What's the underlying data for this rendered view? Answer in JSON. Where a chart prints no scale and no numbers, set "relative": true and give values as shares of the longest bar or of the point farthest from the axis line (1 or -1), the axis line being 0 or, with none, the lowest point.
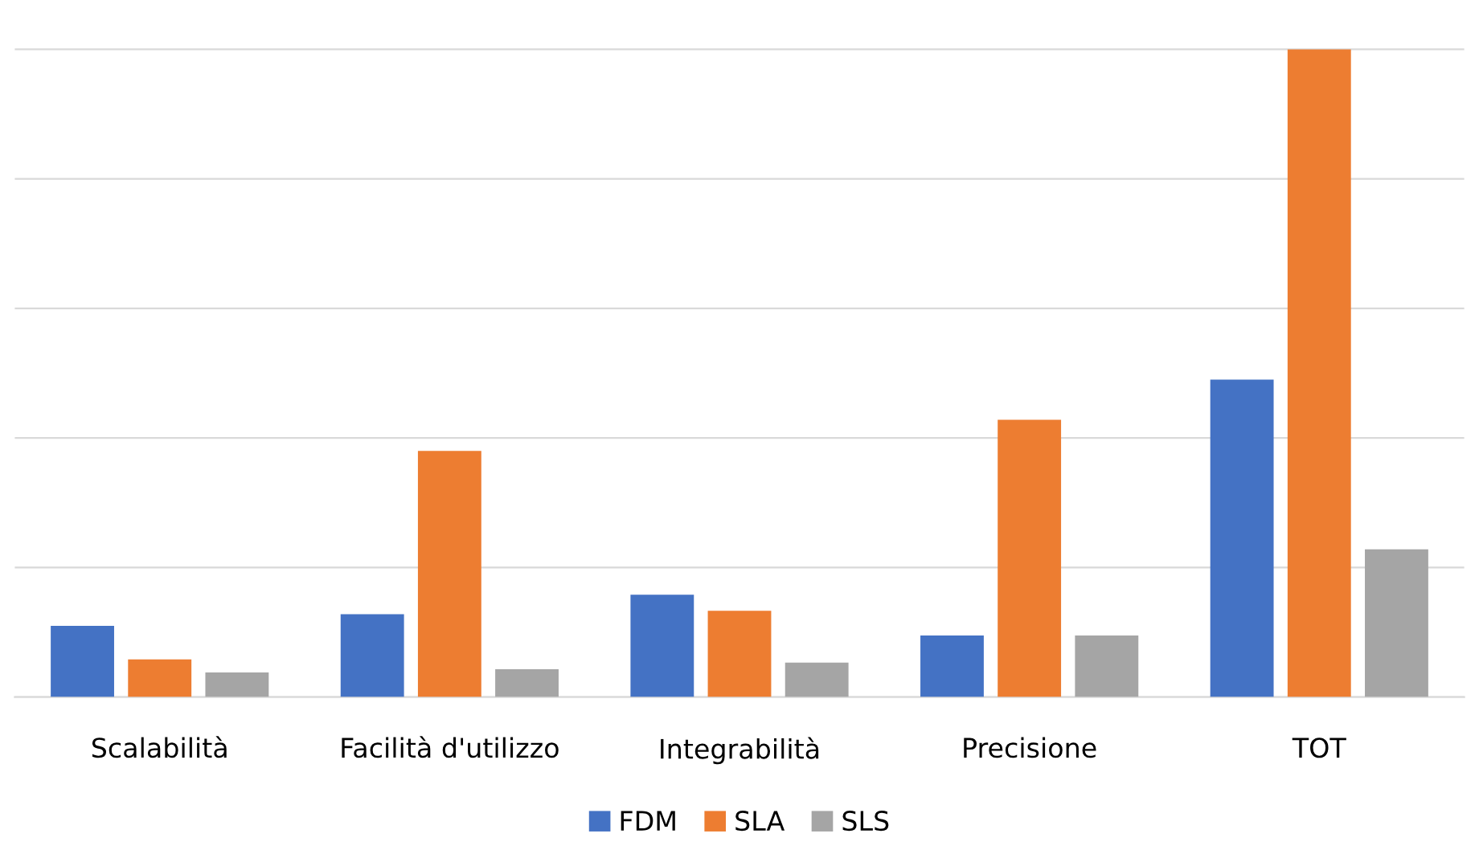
{
  "chart_data": {
    "type": "bar",
    "relative": true,
    "categories": [
      "Scalabilità",
      "Facilità d'utilizzo",
      "Integrabilità",
      "Precisione",
      "TOT"
    ],
    "series": [
      {
        "name": "FDM",
        "color": "#4472c4",
        "values": [
          0.11,
          0.128,
          0.158,
          0.095,
          0.49
        ]
      },
      {
        "name": "SLA",
        "color": "#ed7d31",
        "values": [
          0.058,
          0.38,
          0.133,
          0.428,
          1
        ]
      },
      {
        "name": "SLS",
        "color": "#a5a5a5",
        "values": [
          0.038,
          0.043,
          0.053,
          0.095,
          0.228
        ]
      }
    ],
    "grid": "y",
    "legend": "bottom"
  }
}
